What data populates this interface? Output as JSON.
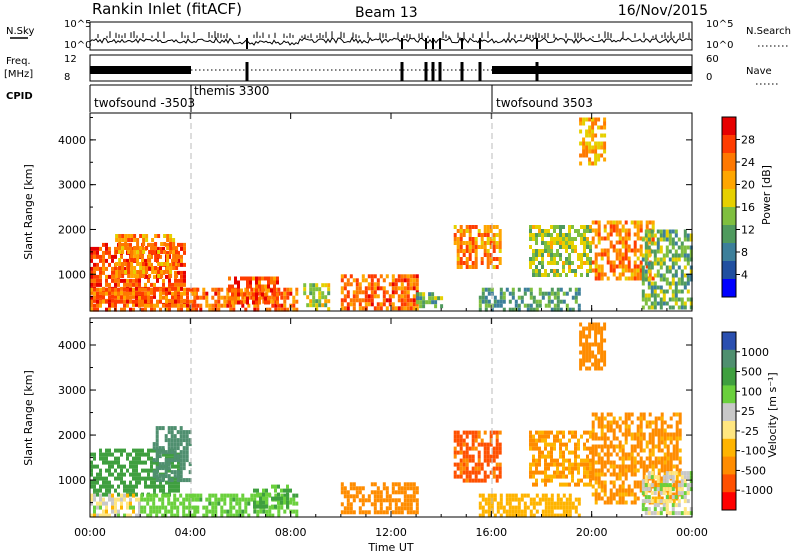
{
  "header": {
    "station": "Rankin Inlet (fitACF)",
    "beam": "Beam 13",
    "date": "16/Nov/2015"
  },
  "strip_labels": {
    "nsky": "N.Sky",
    "nsearch": "N.Search",
    "freq": "Freq.",
    "freq_unit": "[MHz]",
    "nave": "Nave",
    "cpid": "CPID",
    "sky_ticks": [
      "10^5",
      "10^0"
    ],
    "freq_ticks": [
      "12",
      "8"
    ],
    "search_ticks": [
      "10^5",
      "10^0"
    ],
    "nave_ticks": [
      "60",
      "0"
    ]
  },
  "cpid_segments": [
    {
      "label": "twofsound -3503"
    },
    {
      "label": "themis 3300"
    },
    {
      "label": "twofsound 3503"
    }
  ],
  "colors": {
    "power_scale": [
      "#0000ff",
      "#204fa0",
      "#3c7f9a",
      "#4f9a5e",
      "#7fbf3f",
      "#e6d000",
      "#ffa600",
      "#ff7800",
      "#ff3c00",
      "#e60000"
    ],
    "velocity_scale": [
      "#ff0000",
      "#ff5000",
      "#ff8c00",
      "#ffb400",
      "#ffe680",
      "#c8c8c8",
      "#6ad03c",
      "#3f9f3f",
      "#4f8f6f",
      "#2a4fb0"
    ]
  },
  "chart_data": [
    {
      "type": "heatmap",
      "name": "Power",
      "xlabel": "",
      "ylabel": "Slant Range [km]",
      "colorbar_label": "Power [dB]",
      "colorbar_ticks": [
        "28",
        "24",
        "20",
        "16",
        "12",
        "8",
        "4"
      ],
      "x_ticks": [
        "00:00",
        "04:00",
        "08:00",
        "12:00",
        "16:00",
        "20:00",
        "00:00"
      ],
      "y_ticks": [
        "4000",
        "3000",
        "2000",
        "1000"
      ],
      "xlim_hours": [
        0,
        24
      ],
      "ylim_km": [
        180,
        4600
      ],
      "cpid_change_hours": [
        4,
        16
      ],
      "regions": [
        {
          "t": [
            0.0,
            3.8
          ],
          "r": [
            300,
            1700
          ],
          "level": 26
        },
        {
          "t": [
            0.0,
            4.2
          ],
          "r": [
            200,
            700
          ],
          "level": 24
        },
        {
          "t": [
            1.0,
            3.5
          ],
          "r": [
            1000,
            1900
          ],
          "level": 22
        },
        {
          "t": [
            4.0,
            8.2
          ],
          "r": [
            250,
            700
          ],
          "level": 24
        },
        {
          "t": [
            5.5,
            7.5
          ],
          "r": [
            400,
            950
          ],
          "level": 26
        },
        {
          "t": [
            8.5,
            9.5
          ],
          "r": [
            200,
            800
          ],
          "level": 14
        },
        {
          "t": [
            10.0,
            13.0
          ],
          "r": [
            200,
            1000
          ],
          "level": 24
        },
        {
          "t": [
            13.0,
            14.0
          ],
          "r": [
            250,
            600
          ],
          "level": 12
        },
        {
          "t": [
            14.5,
            16.3
          ],
          "r": [
            1200,
            2100
          ],
          "level": 22
        },
        {
          "t": [
            15.5,
            19.5
          ],
          "r": [
            200,
            700
          ],
          "level": 10
        },
        {
          "t": [
            17.5,
            20.0
          ],
          "r": [
            1000,
            2100
          ],
          "level": 14
        },
        {
          "t": [
            20.0,
            22.5
          ],
          "r": [
            900,
            2200
          ],
          "level": 22
        },
        {
          "t": [
            22.0,
            24.0
          ],
          "r": [
            300,
            2000
          ],
          "level": 12
        },
        {
          "t": [
            19.5,
            20.5
          ],
          "r": [
            3500,
            4500
          ],
          "level": 20
        }
      ]
    },
    {
      "type": "heatmap",
      "name": "Velocity",
      "xlabel": "Time UT",
      "ylabel": "Slant Range [km]",
      "colorbar_label": "Velocity [m s⁻¹]",
      "colorbar_ticks": [
        "1000",
        "500",
        "100",
        "25",
        "-25",
        "-100",
        "-500",
        "-1000"
      ],
      "x_ticks": [
        "00:00",
        "04:00",
        "08:00",
        "12:00",
        "16:00",
        "20:00",
        "00:00"
      ],
      "y_ticks": [
        "4000",
        "3000",
        "2000",
        "1000"
      ],
      "xlim_hours": [
        0,
        24
      ],
      "ylim_km": [
        180,
        4600
      ],
      "cpid_change_hours": [
        4,
        16
      ],
      "regions": [
        {
          "t": [
            0.0,
            3.5
          ],
          "r": [
            700,
            1700
          ],
          "level": 150
        },
        {
          "t": [
            0.0,
            2.0
          ],
          "r": [
            200,
            700
          ],
          "level": 0
        },
        {
          "t": [
            2.0,
            4.2
          ],
          "r": [
            200,
            700
          ],
          "level": 60
        },
        {
          "t": [
            2.5,
            4.0
          ],
          "r": [
            1000,
            2200
          ],
          "level": 700
        },
        {
          "t": [
            4.0,
            8.2
          ],
          "r": [
            200,
            700
          ],
          "level": 80
        },
        {
          "t": [
            6.5,
            8.0
          ],
          "r": [
            400,
            900
          ],
          "level": 110
        },
        {
          "t": [
            10.0,
            13.0
          ],
          "r": [
            250,
            950
          ],
          "level": -150
        },
        {
          "t": [
            14.5,
            16.3
          ],
          "r": [
            1000,
            2100
          ],
          "level": -600
        },
        {
          "t": [
            15.5,
            19.5
          ],
          "r": [
            200,
            700
          ],
          "level": -60
        },
        {
          "t": [
            17.5,
            20.0
          ],
          "r": [
            900,
            2100
          ],
          "level": -100
        },
        {
          "t": [
            20.0,
            23.5
          ],
          "r": [
            500,
            2500
          ],
          "level": -120
        },
        {
          "t": [
            22.0,
            24.0
          ],
          "r": [
            300,
            1200
          ],
          "level": 10
        },
        {
          "t": [
            19.5,
            20.5
          ],
          "r": [
            3500,
            4500
          ],
          "level": -300
        }
      ]
    }
  ]
}
